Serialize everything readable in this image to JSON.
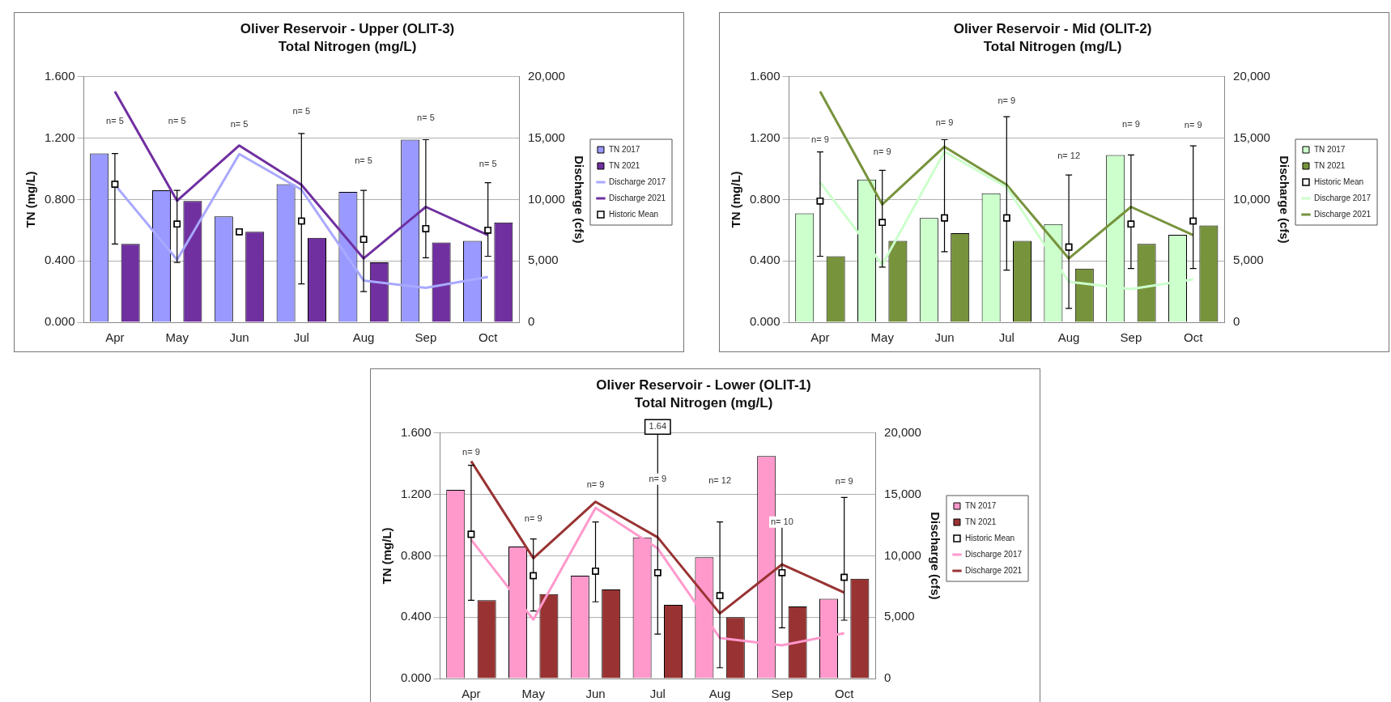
{
  "chart_data": [
    {
      "type": "bar",
      "title": "Oliver Reservoir - Upper (OLIT-3)",
      "subtitle": "Total Nitrogen (mg/L)",
      "ylabel": "TN (mg/L)",
      "y2label": "Discharge (cfs)",
      "categories": [
        "Apr",
        "May",
        "Jun",
        "Jul",
        "Aug",
        "Sep",
        "Oct"
      ],
      "series": [
        {
          "name": "TN 2017",
          "color": "#9999ff",
          "values": [
            1.1,
            0.86,
            0.69,
            0.9,
            0.85,
            1.19,
            0.53
          ]
        },
        {
          "name": "TN 2021",
          "color": "#7030a0",
          "values": [
            0.51,
            0.79,
            0.59,
            0.55,
            0.39,
            0.52,
            0.65
          ]
        },
        {
          "name": "Discharge 2017",
          "type": "line",
          "axis": "y2",
          "color": "#a9a9ff",
          "marker": "none",
          "values": [
            11200,
            5100,
            13700,
            10800,
            3400,
            2800,
            3700
          ]
        },
        {
          "name": "Discharge 2021",
          "type": "line",
          "axis": "y2",
          "color": "#7030a0",
          "marker": "none",
          "values": [
            18800,
            9900,
            14400,
            11200,
            5200,
            9400,
            7100
          ]
        },
        {
          "name": "Historic Mean",
          "type": "scatter",
          "color": "#ffffff",
          "marker": "square",
          "values": [
            0.9,
            0.64,
            0.59,
            0.66,
            0.54,
            0.61,
            0.6
          ],
          "errors": [
            [
              0.51,
              1.1
            ],
            [
              0.39,
              0.86
            ],
            null,
            [
              0.25,
              1.23
            ],
            [
              0.2,
              0.86
            ],
            [
              0.42,
              1.19
            ],
            [
              0.43,
              0.91
            ]
          ]
        }
      ],
      "ylim": [
        0,
        1.6
      ],
      "yticks": [
        {
          "value": 0,
          "label": "0.000"
        },
        {
          "value": 0.4,
          "label": "0.400"
        },
        {
          "value": 0.8,
          "label": "0.800"
        },
        {
          "value": 1.2,
          "label": "1.200"
        },
        {
          "value": 1.6,
          "label": "1.600"
        }
      ],
      "y2lim": [
        0,
        20000
      ],
      "y2ticks": [
        {
          "value": 0,
          "label": "0"
        },
        {
          "value": 5000,
          "label": "5,000"
        },
        {
          "value": 10000,
          "label": "10,000"
        },
        {
          "value": 15000,
          "label": "15,000"
        },
        {
          "value": 20000,
          "label": "20,000"
        }
      ],
      "grid": "y",
      "legend": "right",
      "annotations": [
        {
          "text": "n= 5",
          "x": "Apr",
          "y": 1.31
        },
        {
          "text": "n= 5",
          "x": "May",
          "y": 1.31
        },
        {
          "text": "n= 5",
          "x": "Jun",
          "y": 1.29
        },
        {
          "text": "n= 5",
          "x": "Jul",
          "y": 1.37
        },
        {
          "text": "n= 5",
          "x": "Aug",
          "y": 1.05
        },
        {
          "text": "n= 5",
          "x": "Sep",
          "y": 1.33
        },
        {
          "text": "n= 5",
          "x": "Oct",
          "y": 1.03
        }
      ]
    },
    {
      "type": "bar",
      "title": "Oliver Reservoir - Mid (OLIT-2)",
      "subtitle": "Total Nitrogen (mg/L)",
      "ylabel": "TN (mg/L)",
      "y2label": "Discharge (cfs)",
      "categories": [
        "Apr",
        "May",
        "Jun",
        "Jul",
        "Aug",
        "Sep",
        "Oct"
      ],
      "series": [
        {
          "name": "TN 2017",
          "color": "#ccffcc",
          "values": [
            0.71,
            0.93,
            0.68,
            0.84,
            0.64,
            1.09,
            0.57
          ]
        },
        {
          "name": "TN 2021",
          "color": "#77933c",
          "values": [
            0.43,
            0.53,
            0.58,
            0.53,
            0.35,
            0.51,
            0.63
          ]
        },
        {
          "name": "Historic Mean",
          "type": "scatter",
          "color": "#ffffff",
          "marker": "square",
          "values": [
            0.79,
            0.65,
            0.68,
            0.68,
            0.49,
            0.64,
            0.66
          ],
          "errors": [
            [
              0.43,
              1.11
            ],
            [
              0.36,
              0.99
            ],
            [
              0.46,
              1.19
            ],
            [
              0.34,
              1.34
            ],
            [
              0.09,
              0.96
            ],
            [
              0.35,
              1.09
            ],
            [
              0.35,
              1.15
            ]
          ]
        },
        {
          "name": "Discharge 2017",
          "type": "line",
          "axis": "y2",
          "color": "#ccffcc",
          "marker": "none",
          "values": [
            11400,
            4700,
            13900,
            11000,
            3300,
            2700,
            3500
          ]
        },
        {
          "name": "Discharge 2021",
          "type": "line",
          "axis": "y2",
          "color": "#77933c",
          "marker": "none",
          "values": [
            18800,
            9600,
            14300,
            11200,
            5200,
            9400,
            7100
          ]
        }
      ],
      "ylim": [
        0,
        1.6
      ],
      "yticks": [
        {
          "value": 0,
          "label": "0.000"
        },
        {
          "value": 0.4,
          "label": "0.400"
        },
        {
          "value": 0.8,
          "label": "0.800"
        },
        {
          "value": 1.2,
          "label": "1.200"
        },
        {
          "value": 1.6,
          "label": "1.600"
        }
      ],
      "y2lim": [
        0,
        20000
      ],
      "y2ticks": [
        {
          "value": 0,
          "label": "0"
        },
        {
          "value": 5000,
          "label": "5,000"
        },
        {
          "value": 10000,
          "label": "10,000"
        },
        {
          "value": 15000,
          "label": "15,000"
        },
        {
          "value": 20000,
          "label": "20,000"
        }
      ],
      "grid": "y",
      "legend": "right",
      "annotations": [
        {
          "text": "n= 9",
          "x": "Apr",
          "y": 1.19
        },
        {
          "text": "n= 9",
          "x": "May",
          "y": 1.11
        },
        {
          "text": "n= 9",
          "x": "Jun",
          "y": 1.3
        },
        {
          "text": "n= 9",
          "x": "Jul",
          "y": 1.44
        },
        {
          "text": "n= 12",
          "x": "Aug",
          "y": 1.08
        },
        {
          "text": "n= 9",
          "x": "Sep",
          "y": 1.29
        },
        {
          "text": "n= 9",
          "x": "Oct",
          "y": 1.28
        }
      ]
    },
    {
      "type": "bar",
      "title": "Oliver Reservoir - Lower (OLIT-1)",
      "subtitle": "Total Nitrogen (mg/L)",
      "ylabel": "TN (mg/L)",
      "y2label": "Discharge (cfs)",
      "categories": [
        "Apr",
        "May",
        "Jun",
        "Jul",
        "Aug",
        "Sep",
        "Oct"
      ],
      "series": [
        {
          "name": "TN 2017",
          "color": "#ff99cc",
          "values": [
            1.23,
            0.86,
            0.67,
            0.92,
            0.79,
            1.45,
            0.52
          ]
        },
        {
          "name": "TN 2021",
          "color": "#993333",
          "values": [
            0.51,
            0.55,
            0.58,
            0.48,
            0.4,
            0.47,
            0.65
          ]
        },
        {
          "name": "Historic Mean",
          "type": "scatter",
          "color": "#ffffff",
          "marker": "square",
          "values": [
            0.94,
            0.67,
            0.7,
            0.69,
            0.54,
            0.69,
            0.66
          ],
          "errors": [
            [
              0.51,
              1.39
            ],
            [
              0.44,
              0.91
            ],
            [
              0.5,
              1.02
            ],
            [
              0.29,
              1.64
            ],
            [
              0.07,
              1.02
            ],
            [
              0.33,
              1.04
            ],
            [
              0.38,
              1.18
            ]
          ]
        },
        {
          "name": "Discharge 2017",
          "type": "line",
          "axis": "y2",
          "color": "#ff99cc",
          "marker": "none",
          "values": [
            11300,
            4800,
            13900,
            10600,
            3300,
            2700,
            3700
          ]
        },
        {
          "name": "Discharge 2021",
          "type": "line",
          "axis": "y2",
          "color": "#993333",
          "marker": "none",
          "values": [
            17700,
            9800,
            14400,
            11500,
            5300,
            9300,
            7000
          ]
        }
      ],
      "ylim": [
        0,
        1.6
      ],
      "yticks": [
        {
          "value": 0,
          "label": "0.000"
        },
        {
          "value": 0.4,
          "label": "0.400"
        },
        {
          "value": 0.8,
          "label": "0.800"
        },
        {
          "value": 1.2,
          "label": "1.200"
        },
        {
          "value": 1.6,
          "label": "1.600"
        }
      ],
      "y2lim": [
        0,
        20000
      ],
      "y2ticks": [
        {
          "value": 0,
          "label": "0"
        },
        {
          "value": 5000,
          "label": "5,000"
        },
        {
          "value": 10000,
          "label": "10,000"
        },
        {
          "value": 15000,
          "label": "15,000"
        },
        {
          "value": 20000,
          "label": "20,000"
        }
      ],
      "grid": "y",
      "legend": "right",
      "annotations": [
        {
          "text": "1.64",
          "x": "Jul",
          "y": 1.64
        },
        {
          "text": "n= 9",
          "x": "Apr",
          "y": 1.47
        },
        {
          "text": "n= 9",
          "x": "May",
          "y": 1.04
        },
        {
          "text": "n= 9",
          "x": "Jun",
          "y": 1.26
        },
        {
          "text": "n= 9",
          "x": "Jul",
          "y": 1.3
        },
        {
          "text": "n= 12",
          "x": "Aug",
          "y": 1.29
        },
        {
          "text": "n= 10",
          "x": "Sep",
          "y": 1.02
        },
        {
          "text": "n= 9",
          "x": "Oct",
          "y": 1.28
        }
      ]
    }
  ]
}
